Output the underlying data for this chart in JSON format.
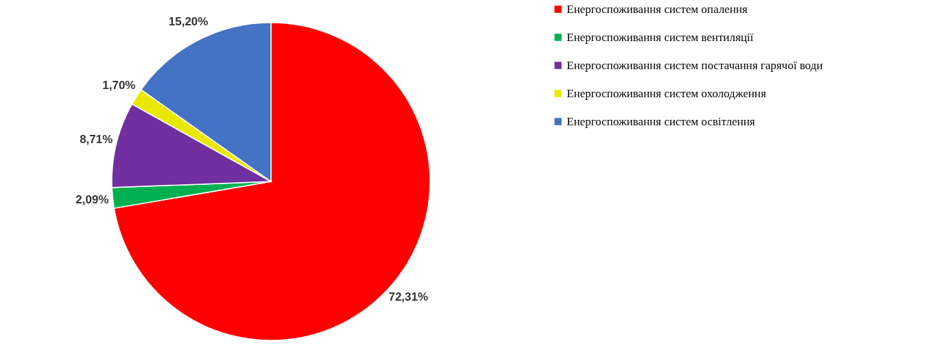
{
  "chart_data": {
    "type": "pie",
    "categories": [
      "Енергоспоживання систем опалення",
      "Енергоспоживання систем вентиляції",
      "Енергоспоживання систем постачання гарячої води",
      "Енергоспоживання систем охолодження",
      "Енергоспоживання систем освітлення"
    ],
    "values": [
      72.31,
      2.09,
      8.71,
      1.7,
      15.2
    ],
    "colors": [
      "#ff0000",
      "#00b050",
      "#7030a0",
      "#e8e800",
      "#4472c4"
    ],
    "value_labels": [
      "72,31%",
      "2,09%",
      "8,71%",
      "1,70%",
      "15,20%"
    ],
    "legend": "right"
  }
}
